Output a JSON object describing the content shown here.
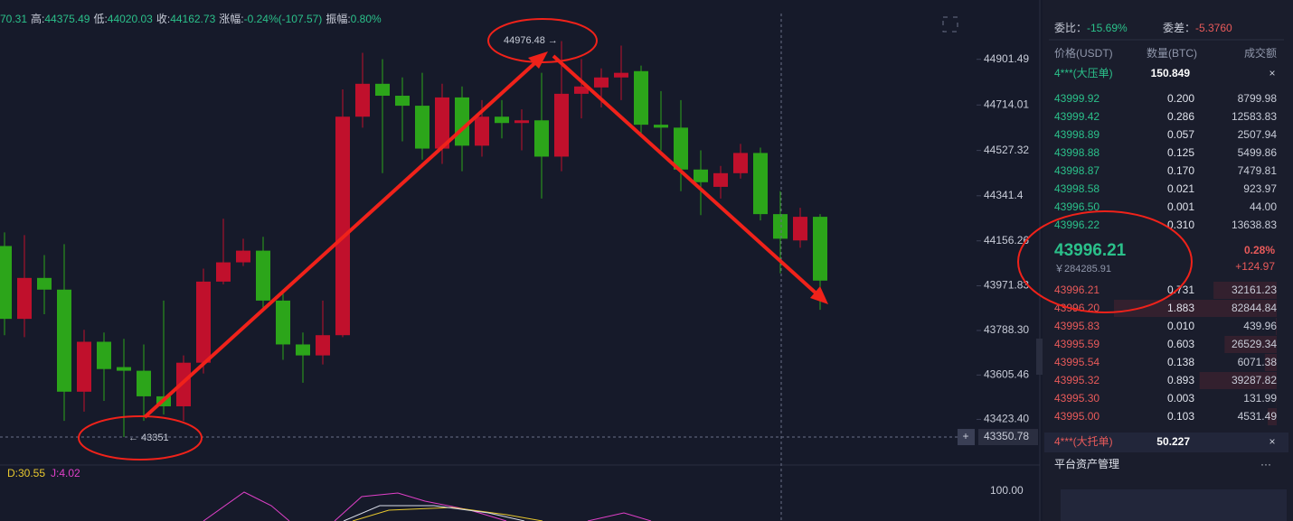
{
  "header": {
    "lead": "70.31",
    "stats": [
      {
        "label": "高:",
        "value": "44375.49"
      },
      {
        "label": "低:",
        "value": "44020.03"
      },
      {
        "label": "收:",
        "value": "44162.73"
      },
      {
        "label": "涨幅:",
        "value": "-0.24%(-107.57)"
      },
      {
        "label": "振幅:",
        "value": "0.80%"
      }
    ]
  },
  "chart_data": {
    "type": "candlestick",
    "colors": {
      "up": "#c0102c",
      "down": "#2ca51a"
    },
    "open": [
      44135,
      43836,
      44004,
      43956,
      43537,
      43742,
      43638,
      43623,
      43518,
      43477,
      43656,
      43989,
      44068,
      44116,
      43911,
      43731,
      43686,
      43769,
      44666,
      44801,
      44752,
      44711,
      44535,
      44745,
      44547,
      44666,
      44640,
      44651,
      44502,
      44760,
      44786,
      44827,
      44853,
      44633,
      44621,
      44449,
      44378,
      44434,
      44517,
      44266,
      44158,
      44255
    ],
    "high": [
      44191,
      44180,
      44098,
      44143,
      43791,
      43780,
      43754,
      43731,
      43911,
      43686,
      44042,
      44247,
      44165,
      44173,
      43941,
      43780,
      43911,
      44778,
      44928,
      44902,
      44827,
      44846,
      44801,
      44790,
      44734,
      44734,
      44696,
      44846,
      44976.48,
      44902,
      44864,
      44958,
      44876,
      44771,
      44734,
      44528,
      44464,
      44554,
      44539,
      44360,
      44292,
      44266
    ],
    "low": [
      43769,
      43761,
      43855,
      43417,
      43455,
      43499,
      43351,
      43417,
      43443,
      43417,
      43612,
      43978,
      44053,
      43881,
      43668,
      43574,
      43649,
      43761,
      44621,
      44434,
      44565,
      44490,
      44472,
      44442,
      44502,
      44577,
      44528,
      44330,
      44442,
      44659,
      44704,
      44734,
      44584,
      44528,
      44360,
      44262,
      44330,
      44412,
      44240,
      44023,
      44128,
      43873
    ],
    "close": [
      43836,
      44004,
      43956,
      43537,
      43742,
      43630,
      43623,
      43518,
      43477,
      43656,
      43989,
      44068,
      44116,
      43911,
      43731,
      43686,
      43769,
      44666,
      44801,
      44752,
      44711,
      44535,
      44745,
      44547,
      44666,
      44640,
      44651,
      44502,
      44760,
      44790,
      44827,
      44846,
      44633,
      44621,
      44449,
      44397,
      44434,
      44517,
      44266,
      44165,
      44255,
      43993
    ],
    "ylim": [
      43236,
      45145
    ],
    "yticks": [
      44901.49,
      44714.01,
      44527.32,
      44341.4,
      44156.26,
      43971.83,
      {
        "value": 43788.3,
        "label": "43788.30"
      },
      43605.46,
      {
        "value": 43423.4,
        "label": "43423.40"
      }
    ],
    "crosshair_price": 43350.78,
    "annotations": [
      "← 43351",
      "44976.48 →"
    ],
    "indicator": {
      "labels": [
        "D:30.55",
        "J:4.02"
      ],
      "tick": "100.00"
    }
  },
  "order_book": {
    "ratio_label": "委比：",
    "ratio": "-15.69%",
    "diff_label": "委差：",
    "diff": "-5.3760",
    "columns": [
      "价格(USDT)",
      "数量(BTC)",
      "成交额"
    ],
    "ask_wall": {
      "label": "4***(大压单)",
      "amount": "150.849"
    },
    "asks": [
      [
        "43999.92",
        "0.200",
        "8799.98"
      ],
      [
        "43999.42",
        "0.286",
        "12583.83"
      ],
      [
        "43998.89",
        "0.057",
        "2507.94"
      ],
      [
        "43998.88",
        "0.125",
        "5499.86"
      ],
      [
        "43998.87",
        "0.170",
        "7479.81"
      ],
      [
        "43998.58",
        "0.021",
        "923.97"
      ],
      [
        "43996.50",
        "0.001",
        "44.00"
      ],
      [
        "43996.22",
        "0.310",
        "13638.83"
      ]
    ],
    "last_price": "43996.21",
    "last_cny": "￥284285.91",
    "change_pct": "0.28%",
    "change": "+124.97",
    "bids": [
      [
        "43996.21",
        "0.731",
        "32161.23"
      ],
      [
        "43996.20",
        "1.883",
        "82844.84"
      ],
      [
        "43995.83",
        "0.010",
        "439.96"
      ],
      [
        "43995.59",
        "0.603",
        "26529.34"
      ],
      [
        "43995.54",
        "0.138",
        "6071.38"
      ],
      [
        "43995.32",
        "0.893",
        "39287.82"
      ],
      [
        "43995.30",
        "0.003",
        "131.99"
      ],
      [
        "43995.00",
        "0.103",
        "4531.49"
      ]
    ],
    "bid_wall": {
      "label": "4***(大托单)",
      "amount": "50.227"
    },
    "footer": "平台资产管理"
  }
}
